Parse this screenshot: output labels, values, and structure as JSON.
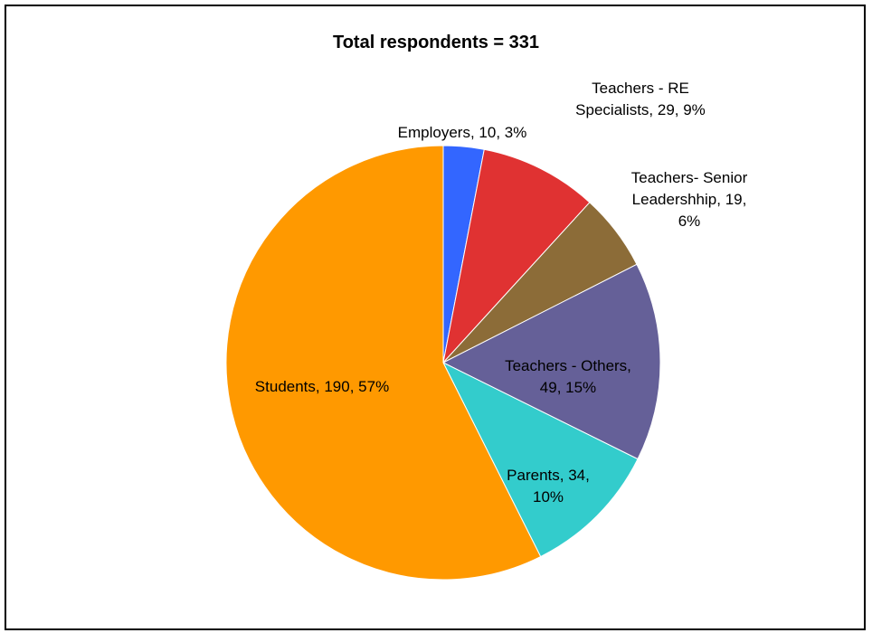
{
  "chart_data": {
    "type": "pie",
    "title": "Total respondents = 331",
    "slices": [
      {
        "label": "Employers",
        "value": 10,
        "percent": "3%",
        "color": "#3366ff",
        "label_lines": [
          "Employers, 10, 3%"
        ]
      },
      {
        "label": "Teachers - RE Specialists",
        "value": 29,
        "percent": "9%",
        "color": "#e03232",
        "label_lines": [
          "Teachers - RE",
          "Specialists, 29, 9%"
        ]
      },
      {
        "label": "Teachers- Senior Leadershhip",
        "value": 19,
        "percent": "6%",
        "color": "#8c6c38",
        "label_lines": [
          "Teachers- Senior",
          "Leadershhip, 19,",
          "6%"
        ]
      },
      {
        "label": "Teachers - Others",
        "value": 49,
        "percent": "15%",
        "color": "#656098",
        "label_lines": [
          "Teachers - Others,",
          "49, 15%"
        ]
      },
      {
        "label": "Parents",
        "value": 34,
        "percent": "10%",
        "color": "#33cccc",
        "label_lines": [
          "Parents, 34,",
          "10%"
        ]
      },
      {
        "label": "Students",
        "value": 190,
        "percent": "57%",
        "color": "#ff9900",
        "label_lines": [
          "Students, 190, 57%"
        ]
      }
    ],
    "start_angle": "12 o'clock",
    "direction": "clockwise",
    "legend": "none"
  }
}
